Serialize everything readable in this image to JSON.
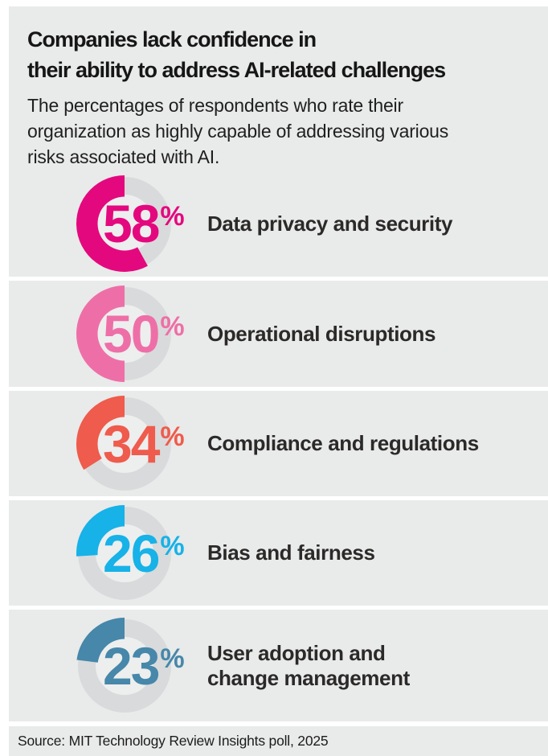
{
  "page": {
    "background": "#ffffff",
    "panel_background": "#e9eaea"
  },
  "header": {
    "title": "Companies lack confidence in their ability to address AI-related challenges",
    "title_lines": [
      "Companies lack confidence in",
      "their ability to address AI-related challenges"
    ],
    "subtitle": "The percentages of respondents who rate their organization as highly capable of addressing various risks associated with AI.",
    "subtitle_lines": [
      "The percentages of respondents who rate their",
      "organization as highly capable of addressing various",
      "risks associated with AI."
    ]
  },
  "footer": {
    "source": "Source: MIT Technology Review Insights poll, 2025"
  },
  "chart_data": {
    "type": "donut",
    "title": "Companies lack confidence in their ability to address AI-related challenges",
    "subtitle": "The percentages of respondents who rate their organization as highly capable of addressing various risks associated with AI.",
    "source": "Source: MIT Technology Review Insights poll, 2025",
    "unit": "%",
    "start_angle": "12-oclock",
    "direction": "counterclockwise",
    "categories": [
      "Data privacy and security",
      "Operational disruptions",
      "Compliance and regulations",
      "Bias and fairness",
      "User adoption and change management"
    ],
    "values": [
      58,
      50,
      34,
      26,
      23
    ],
    "items": [
      {
        "label": "Data privacy and security",
        "label_lines": [
          "Data privacy and security"
        ],
        "value": 58,
        "color": "#e4087e"
      },
      {
        "label": "Operational disruptions",
        "label_lines": [
          "Operational disruptions"
        ],
        "value": 50,
        "color": "#ee6fa7"
      },
      {
        "label": "Compliance and regulations",
        "label_lines": [
          "Compliance and regulations"
        ],
        "value": 34,
        "color": "#ef5b4c"
      },
      {
        "label": "Bias and fairness",
        "label_lines": [
          "Bias and fairness"
        ],
        "value": 26,
        "color": "#16b2e8"
      },
      {
        "label": "User adoption and change management",
        "label_lines": [
          "User adoption and",
          "change management"
        ],
        "value": 23,
        "color": "#4687aa"
      }
    ],
    "style": {
      "track_color": "#d9dadb",
      "hole_color": "#edeeee",
      "label_color": "#2b2a29",
      "outer_radius": 60,
      "inner_radius": 33.5,
      "track_outer_radius": 58,
      "track_inner_radius": 36
    }
  }
}
